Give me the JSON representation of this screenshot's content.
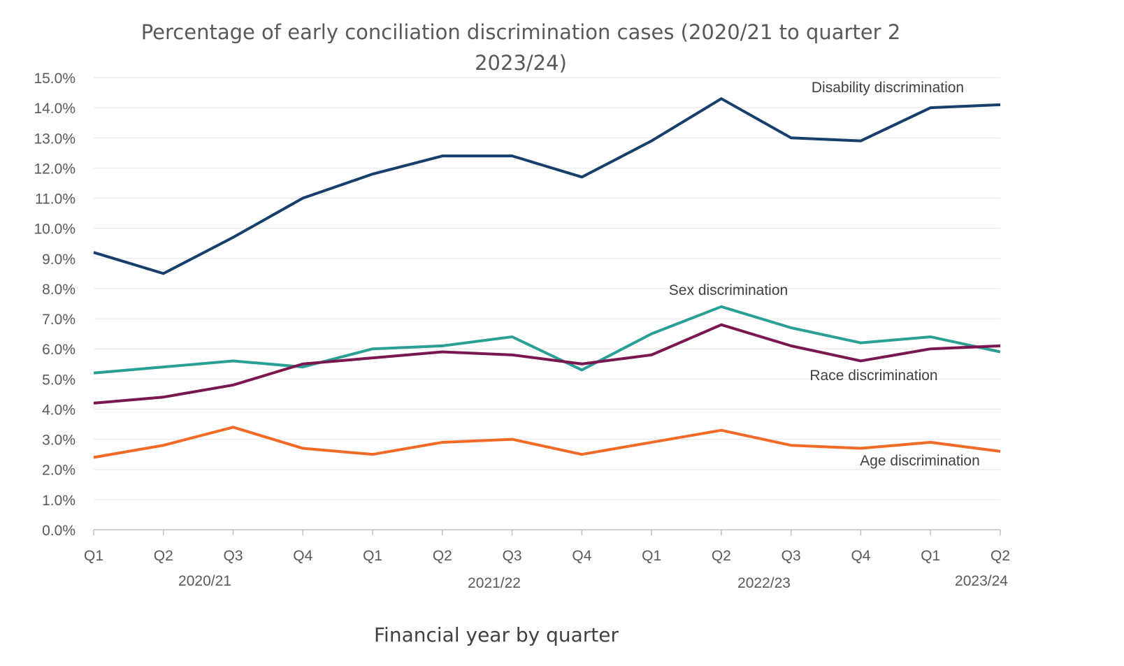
{
  "chart_data": {
    "type": "line",
    "title_lines": [
      "Percentage of early conciliation discrimination cases (2020/21 to quarter 2",
      "2023/24)"
    ],
    "xlabel": "Financial year by quarter",
    "ylabel": "",
    "ylim": [
      0,
      15
    ],
    "y_ticks": [
      "0.0%",
      "1.0%",
      "2.0%",
      "3.0%",
      "4.0%",
      "5.0%",
      "6.0%",
      "7.0%",
      "8.0%",
      "9.0%",
      "10.0%",
      "11.0%",
      "12.0%",
      "13.0%",
      "14.0%",
      "15.0%"
    ],
    "categories": [
      "Q1",
      "Q2",
      "Q3",
      "Q4",
      "Q1",
      "Q2",
      "Q3",
      "Q4",
      "Q1",
      "Q2",
      "Q3",
      "Q4",
      "Q1",
      "Q2"
    ],
    "year_groups": [
      "2020/21",
      "2021/22",
      "2022/23",
      "2023/24"
    ],
    "grid": "horizontal",
    "legend": "inline labels",
    "series": [
      {
        "name": "Disability discrimination",
        "color": "#173F6B",
        "values": [
          9.2,
          8.5,
          9.7,
          11.0,
          11.8,
          12.4,
          12.4,
          11.7,
          12.9,
          14.3,
          13.0,
          12.9,
          14.0,
          14.1
        ]
      },
      {
        "name": "Sex discrimination",
        "color": "#2A9F96",
        "values": [
          5.2,
          5.4,
          5.6,
          5.4,
          6.0,
          6.1,
          6.4,
          5.3,
          6.5,
          7.4,
          6.7,
          6.2,
          6.4,
          5.9
        ]
      },
      {
        "name": "Race discrimination",
        "color": "#7A1751",
        "values": [
          4.2,
          4.4,
          4.8,
          5.5,
          5.7,
          5.9,
          5.8,
          5.5,
          5.8,
          6.8,
          6.1,
          5.6,
          6.0,
          6.1
        ]
      },
      {
        "name": "Age discrimination",
        "color": "#F26B26",
        "values": [
          2.4,
          2.8,
          3.4,
          2.7,
          2.5,
          2.9,
          3.0,
          2.5,
          2.9,
          3.3,
          2.8,
          2.7,
          2.9,
          2.6
        ]
      }
    ]
  }
}
